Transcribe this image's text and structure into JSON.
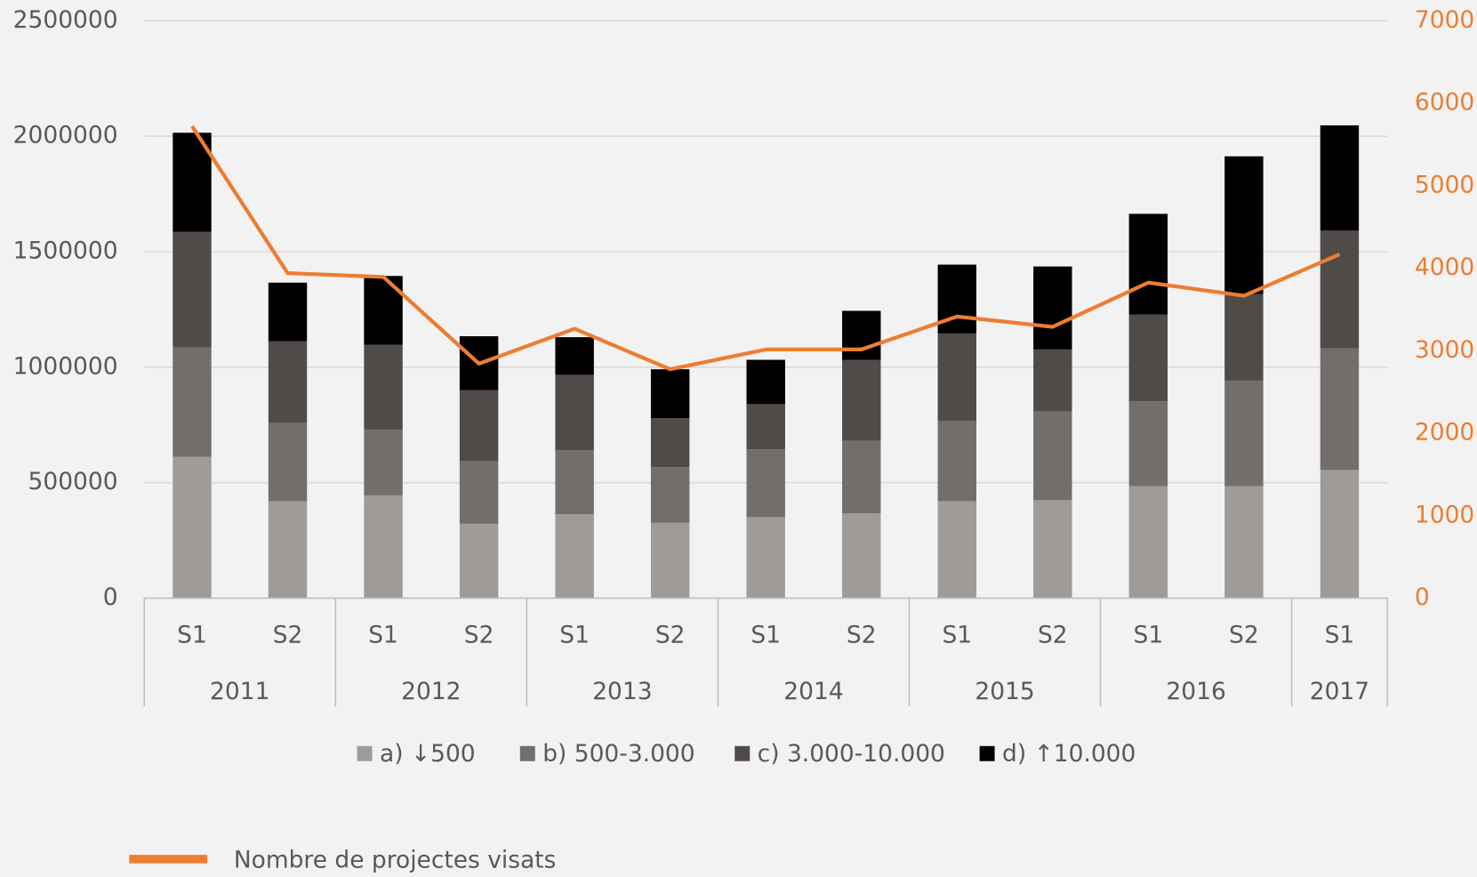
{
  "chart_data": {
    "type": "bar",
    "stacked": true,
    "categories": [
      [
        "2011",
        "S1"
      ],
      [
        "2011",
        "S2"
      ],
      [
        "2012",
        "S1"
      ],
      [
        "2012",
        "S2"
      ],
      [
        "2013",
        "S1"
      ],
      [
        "2013",
        "S2"
      ],
      [
        "2014",
        "S1"
      ],
      [
        "2014",
        "S2"
      ],
      [
        "2015",
        "S1"
      ],
      [
        "2015",
        "S2"
      ],
      [
        "2016",
        "S1"
      ],
      [
        "2016",
        "S2"
      ],
      [
        "2017",
        "S1"
      ]
    ],
    "series": [
      {
        "name": "a) ↓500",
        "color": "#9e9b99",
        "values": [
          612000,
          420000,
          445000,
          322000,
          363000,
          326000,
          351000,
          367000,
          420000,
          424000,
          485000,
          485000,
          555000
        ]
      },
      {
        "name": "b) 500-3.000",
        "color": "#736e6c",
        "values": [
          473000,
          339000,
          285000,
          273000,
          277000,
          241000,
          293000,
          314000,
          347000,
          384000,
          367000,
          457000,
          526000
        ]
      },
      {
        "name": "c) 3.000-10.000",
        "color": "#504b49",
        "values": [
          501000,
          354000,
          367000,
          306000,
          327000,
          212000,
          196000,
          351000,
          379000,
          269000,
          376000,
          375000,
          510000
        ]
      },
      {
        "name": "d) ↑10.000",
        "color": "#000000",
        "values": [
          429000,
          253000,
          298000,
          233000,
          163000,
          212000,
          192000,
          212000,
          298000,
          359000,
          436000,
          596000,
          456000
        ]
      },
      {
        "name": "Nombre de projectes visats",
        "type": "line",
        "axis": "y2",
        "color": "#ed7d31",
        "values": [
          5721,
          3940,
          3894,
          2843,
          3266,
          2775,
          3015,
          3015,
          3414,
          3289,
          3825,
          3666,
          4168
        ]
      }
    ],
    "ylim": [
      0,
      2500000
    ],
    "yticks": [
      0,
      500000,
      1000000,
      1500000,
      2000000,
      2500000
    ],
    "y2lim": [
      0,
      7000
    ],
    "y2ticks": [
      0,
      1000,
      2000,
      3000,
      4000,
      5000,
      6000,
      7000
    ],
    "grid": true
  }
}
